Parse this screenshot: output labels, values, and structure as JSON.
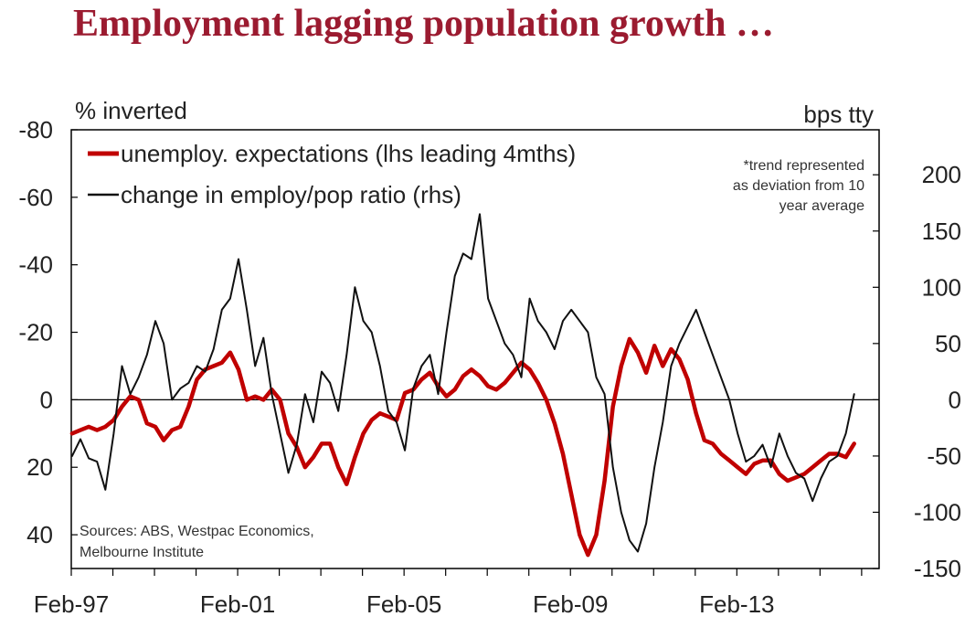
{
  "title": "Employment lagging population growth …",
  "chart_data": {
    "type": "line",
    "title": "Employment lagging population growth …",
    "left_axis_label": "% inverted",
    "right_axis_label": "bps tty",
    "left_axis": {
      "range": [
        -80,
        50
      ],
      "ticks": [
        "-80",
        "-60",
        "-40",
        "-20",
        "0",
        "20",
        "40"
      ],
      "tick_values": [
        -80,
        -60,
        -40,
        -20,
        0,
        20,
        40
      ],
      "inverted_note": "values increase downward"
    },
    "right_axis": {
      "range": [
        -150,
        240
      ],
      "ticks": [
        "200",
        "150",
        "100",
        "50",
        "0",
        "-50",
        "-100",
        "-150"
      ],
      "tick_values": [
        200,
        150,
        100,
        50,
        0,
        -50,
        -100,
        -150
      ]
    },
    "x_axis": {
      "range": [
        1997.08,
        2016.5
      ],
      "ticks": [
        "Feb-97",
        "Feb-01",
        "Feb-05",
        "Feb-09",
        "Feb-13"
      ],
      "tick_values": [
        1997.08,
        2001.08,
        2005.08,
        2009.08,
        2013.08
      ]
    },
    "note": "*trend represented as deviation from 10 year average",
    "sources": [
      "Sources: ABS, Westpac Economics,",
      "Melbourne Institute"
    ],
    "series": [
      {
        "name": "unemploy. expectations (lhs leading 4mths)",
        "axis": "left",
        "color": "#c00000",
        "points": [
          [
            1997.1,
            10
          ],
          [
            1997.3,
            9
          ],
          [
            1997.5,
            8
          ],
          [
            1997.7,
            9
          ],
          [
            1997.9,
            8
          ],
          [
            1998.1,
            6
          ],
          [
            1998.3,
            2
          ],
          [
            1998.5,
            -1
          ],
          [
            1998.7,
            0
          ],
          [
            1998.9,
            7
          ],
          [
            1999.1,
            8
          ],
          [
            1999.3,
            12
          ],
          [
            1999.5,
            9
          ],
          [
            1999.7,
            8
          ],
          [
            1999.9,
            2
          ],
          [
            2000.1,
            -6
          ],
          [
            2000.3,
            -9
          ],
          [
            2000.5,
            -10
          ],
          [
            2000.7,
            -11
          ],
          [
            2000.9,
            -14
          ],
          [
            2001.1,
            -9
          ],
          [
            2001.3,
            0
          ],
          [
            2001.5,
            -1
          ],
          [
            2001.7,
            0
          ],
          [
            2001.9,
            -3
          ],
          [
            2002.1,
            0
          ],
          [
            2002.3,
            10
          ],
          [
            2002.5,
            14
          ],
          [
            2002.7,
            20
          ],
          [
            2002.9,
            17
          ],
          [
            2003.1,
            13
          ],
          [
            2003.3,
            13
          ],
          [
            2003.5,
            20
          ],
          [
            2003.7,
            25
          ],
          [
            2003.9,
            17
          ],
          [
            2004.1,
            10
          ],
          [
            2004.3,
            6
          ],
          [
            2004.5,
            4
          ],
          [
            2004.7,
            5
          ],
          [
            2004.9,
            6
          ],
          [
            2005.1,
            -2
          ],
          [
            2005.3,
            -3
          ],
          [
            2005.5,
            -6
          ],
          [
            2005.7,
            -8
          ],
          [
            2005.9,
            -4
          ],
          [
            2006.1,
            -1
          ],
          [
            2006.3,
            -3
          ],
          [
            2006.5,
            -7
          ],
          [
            2006.7,
            -9
          ],
          [
            2006.9,
            -7
          ],
          [
            2007.1,
            -4
          ],
          [
            2007.3,
            -3
          ],
          [
            2007.5,
            -5
          ],
          [
            2007.7,
            -8
          ],
          [
            2007.9,
            -11
          ],
          [
            2008.1,
            -9
          ],
          [
            2008.3,
            -5
          ],
          [
            2008.5,
            0
          ],
          [
            2008.7,
            7
          ],
          [
            2008.9,
            16
          ],
          [
            2009.1,
            28
          ],
          [
            2009.3,
            40
          ],
          [
            2009.5,
            46
          ],
          [
            2009.7,
            40
          ],
          [
            2009.9,
            24
          ],
          [
            2010.1,
            2
          ],
          [
            2010.3,
            -10
          ],
          [
            2010.5,
            -18
          ],
          [
            2010.7,
            -14
          ],
          [
            2010.9,
            -8
          ],
          [
            2011.1,
            -16
          ],
          [
            2011.3,
            -10
          ],
          [
            2011.5,
            -15
          ],
          [
            2011.7,
            -12
          ],
          [
            2011.9,
            -6
          ],
          [
            2012.1,
            4
          ],
          [
            2012.3,
            12
          ],
          [
            2012.5,
            13
          ],
          [
            2012.7,
            16
          ],
          [
            2012.9,
            18
          ],
          [
            2013.1,
            20
          ],
          [
            2013.3,
            22
          ],
          [
            2013.5,
            19
          ],
          [
            2013.7,
            18
          ],
          [
            2013.9,
            18
          ],
          [
            2014.1,
            22
          ],
          [
            2014.3,
            24
          ],
          [
            2014.5,
            23
          ],
          [
            2014.7,
            22
          ],
          [
            2014.9,
            20
          ],
          [
            2015.1,
            18
          ],
          [
            2015.3,
            16
          ],
          [
            2015.5,
            16
          ],
          [
            2015.7,
            17
          ],
          [
            2015.9,
            13
          ]
        ]
      },
      {
        "name": "change in employ/pop ratio (rhs)",
        "axis": "right",
        "color": "#111111",
        "points": [
          [
            1997.1,
            -50
          ],
          [
            1997.3,
            -35
          ],
          [
            1997.5,
            -52
          ],
          [
            1997.7,
            -55
          ],
          [
            1997.9,
            -80
          ],
          [
            1998.1,
            -30
          ],
          [
            1998.3,
            30
          ],
          [
            1998.5,
            5
          ],
          [
            1998.7,
            20
          ],
          [
            1998.9,
            40
          ],
          [
            1999.1,
            70
          ],
          [
            1999.3,
            50
          ],
          [
            1999.5,
            0
          ],
          [
            1999.7,
            10
          ],
          [
            1999.9,
            15
          ],
          [
            2000.1,
            30
          ],
          [
            2000.3,
            25
          ],
          [
            2000.5,
            45
          ],
          [
            2000.7,
            80
          ],
          [
            2000.9,
            90
          ],
          [
            2001.1,
            125
          ],
          [
            2001.3,
            80
          ],
          [
            2001.5,
            30
          ],
          [
            2001.7,
            55
          ],
          [
            2001.9,
            5
          ],
          [
            2002.1,
            -30
          ],
          [
            2002.3,
            -65
          ],
          [
            2002.5,
            -40
          ],
          [
            2002.7,
            5
          ],
          [
            2002.9,
            -20
          ],
          [
            2003.1,
            25
          ],
          [
            2003.3,
            15
          ],
          [
            2003.5,
            -10
          ],
          [
            2003.7,
            40
          ],
          [
            2003.9,
            100
          ],
          [
            2004.1,
            70
          ],
          [
            2004.3,
            60
          ],
          [
            2004.5,
            30
          ],
          [
            2004.7,
            -10
          ],
          [
            2004.9,
            -20
          ],
          [
            2005.1,
            -45
          ],
          [
            2005.3,
            10
          ],
          [
            2005.5,
            30
          ],
          [
            2005.7,
            40
          ],
          [
            2005.9,
            5
          ],
          [
            2006.1,
            60
          ],
          [
            2006.3,
            110
          ],
          [
            2006.5,
            130
          ],
          [
            2006.7,
            125
          ],
          [
            2006.9,
            165
          ],
          [
            2007.1,
            90
          ],
          [
            2007.3,
            70
          ],
          [
            2007.5,
            50
          ],
          [
            2007.7,
            40
          ],
          [
            2007.9,
            20
          ],
          [
            2008.1,
            90
          ],
          [
            2008.3,
            70
          ],
          [
            2008.5,
            60
          ],
          [
            2008.7,
            45
          ],
          [
            2008.9,
            70
          ],
          [
            2009.1,
            80
          ],
          [
            2009.3,
            70
          ],
          [
            2009.5,
            60
          ],
          [
            2009.7,
            20
          ],
          [
            2009.9,
            5
          ],
          [
            2010.1,
            -60
          ],
          [
            2010.3,
            -100
          ],
          [
            2010.5,
            -125
          ],
          [
            2010.7,
            -135
          ],
          [
            2010.9,
            -110
          ],
          [
            2011.1,
            -60
          ],
          [
            2011.3,
            -20
          ],
          [
            2011.5,
            30
          ],
          [
            2011.7,
            50
          ],
          [
            2011.9,
            65
          ],
          [
            2012.1,
            80
          ],
          [
            2012.3,
            60
          ],
          [
            2012.5,
            40
          ],
          [
            2012.7,
            20
          ],
          [
            2012.9,
            0
          ],
          [
            2013.1,
            -30
          ],
          [
            2013.3,
            -55
          ],
          [
            2013.5,
            -50
          ],
          [
            2013.7,
            -40
          ],
          [
            2013.9,
            -60
          ],
          [
            2014.1,
            -30
          ],
          [
            2014.3,
            -50
          ],
          [
            2014.5,
            -65
          ],
          [
            2014.7,
            -70
          ],
          [
            2014.9,
            -90
          ],
          [
            2015.1,
            -70
          ],
          [
            2015.3,
            -55
          ],
          [
            2015.5,
            -50
          ],
          [
            2015.7,
            -30
          ],
          [
            2015.9,
            5
          ]
        ]
      }
    ]
  }
}
